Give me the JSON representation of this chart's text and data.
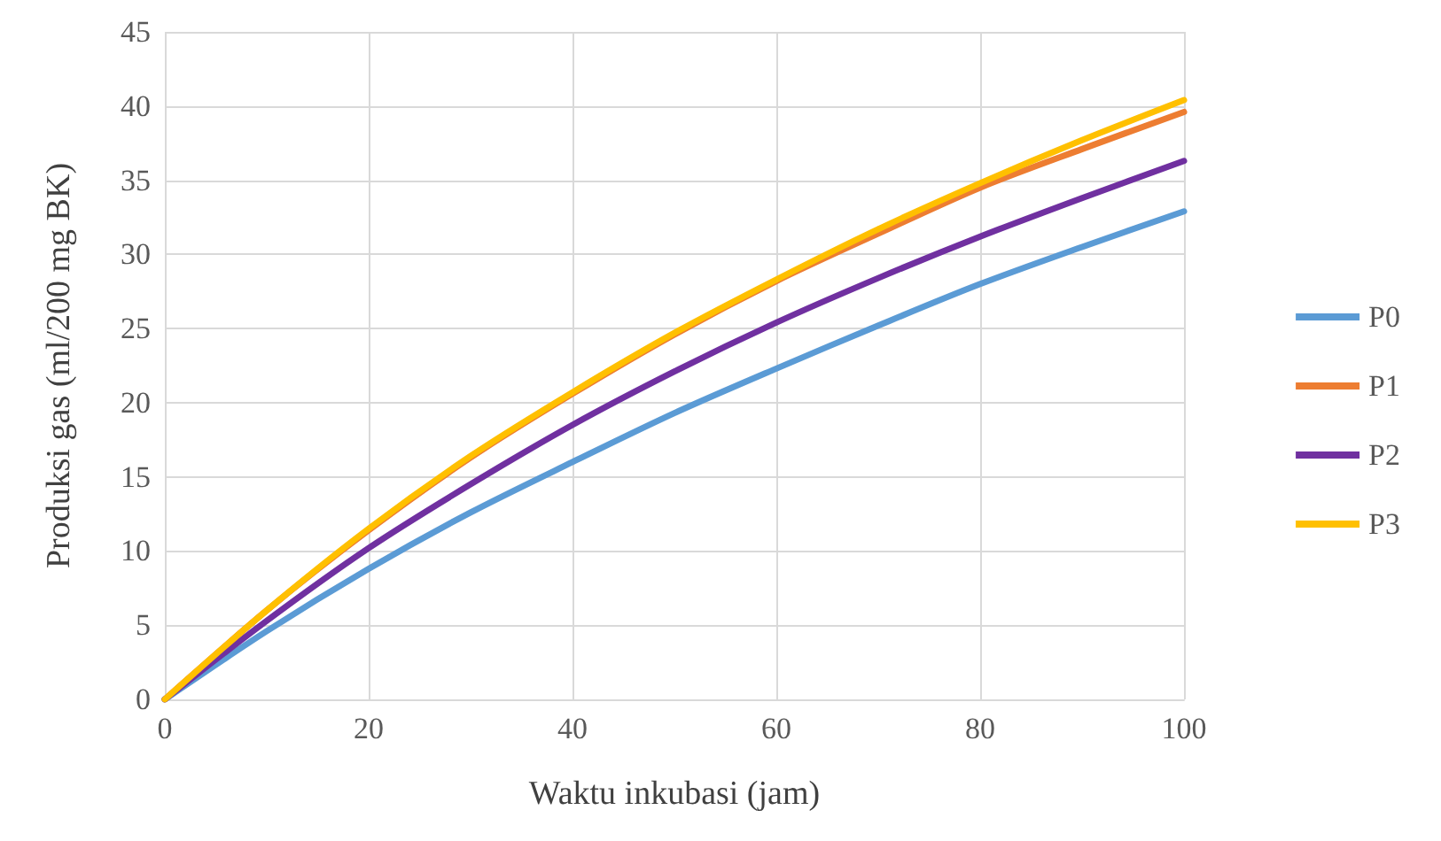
{
  "chart_data": {
    "type": "line",
    "xlabel": "Waktu inkubasi (jam)",
    "ylabel": "Produksi gas (ml/200 mg BK)",
    "x": [
      0,
      10,
      20,
      30,
      40,
      50,
      60,
      70,
      80,
      90,
      100
    ],
    "series": [
      {
        "name": "P0",
        "color": "#5b9bd5",
        "values": [
          0,
          4.6,
          8.8,
          12.6,
          16.0,
          19.3,
          22.3,
          25.2,
          28.0,
          30.5,
          32.9
        ]
      },
      {
        "name": "P1",
        "color": "#ed7d31",
        "values": [
          0,
          6.0,
          11.4,
          16.3,
          20.6,
          24.6,
          28.2,
          31.4,
          34.5,
          37.1,
          39.6
        ]
      },
      {
        "name": "P2",
        "color": "#7030a0",
        "values": [
          0,
          5.3,
          10.2,
          14.5,
          18.5,
          22.1,
          25.4,
          28.4,
          31.2,
          33.8,
          36.3
        ]
      },
      {
        "name": "P3",
        "color": "#ffc000",
        "values": [
          0,
          6.0,
          11.5,
          16.4,
          20.7,
          24.7,
          28.3,
          31.7,
          34.8,
          37.7,
          40.4
        ]
      }
    ],
    "xlim": [
      0,
      100
    ],
    "xticks": [
      0,
      20,
      40,
      60,
      80,
      100
    ],
    "ylim": [
      0,
      45
    ],
    "yticks": [
      0,
      5,
      10,
      15,
      20,
      25,
      30,
      35,
      40,
      45
    ],
    "grid": true,
    "legend": "right",
    "marker": "none",
    "line_style": "solid"
  }
}
